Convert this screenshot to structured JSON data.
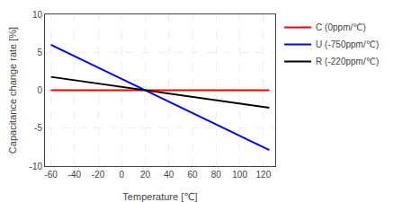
{
  "chart_data": {
    "type": "line",
    "xlabel": "Temperature [℃]",
    "ylabel": "Capacitance change rate [%]",
    "xlim": [
      -65,
      130
    ],
    "ylim": [
      -10,
      10
    ],
    "xticks": [
      -60,
      -40,
      -20,
      0,
      20,
      40,
      60,
      80,
      100,
      120
    ],
    "yticks": [
      -10,
      -5,
      0,
      5,
      10
    ],
    "grid": true,
    "legend": "right",
    "series": [
      {
        "name": "C (0ppm/℃)",
        "color": "#ff0000",
        "x": [
          -60,
          125
        ],
        "values": [
          0.0,
          0.0
        ]
      },
      {
        "name": "U (-750ppm/℃)",
        "color": "#0000ff",
        "x": [
          -60,
          125
        ],
        "values": [
          6.0,
          -7.875
        ]
      },
      {
        "name": "R (-220ppm/℃)",
        "color": "#000000",
        "x": [
          -60,
          125
        ],
        "values": [
          1.76,
          -2.31
        ]
      }
    ]
  }
}
